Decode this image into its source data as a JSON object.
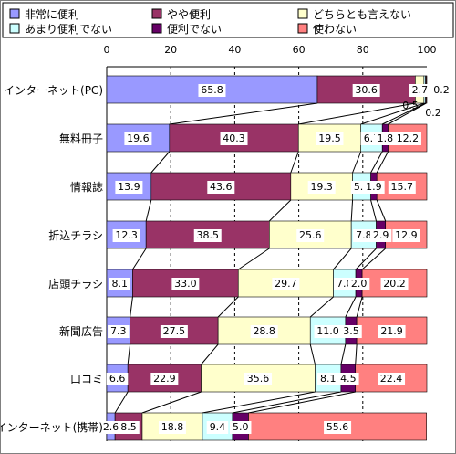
{
  "chart_data": {
    "type": "bar",
    "orientation": "horizontal",
    "stacked": true,
    "xlim": [
      0,
      100
    ],
    "xticks": [
      0,
      20,
      40,
      60,
      80,
      100
    ],
    "grid": "dashed vertical at 20, 40, 60, 80",
    "legend_position": "top",
    "series_lines": true,
    "categories": [
      "インターネット(PC)",
      "無料冊子",
      "情報誌",
      "折込チラシ",
      "店頭チラシ",
      "新聞広告",
      "口コミ",
      "インターネット(携帯)"
    ],
    "series": [
      {
        "name": "非常に便利",
        "color": "#9999ff",
        "values": [
          65.8,
          19.6,
          13.9,
          12.3,
          8.1,
          7.3,
          6.6,
          2.6
        ]
      },
      {
        "name": "やや便利",
        "color": "#993366",
        "values": [
          30.6,
          40.3,
          43.6,
          38.5,
          33.0,
          27.5,
          22.9,
          8.5
        ]
      },
      {
        "name": "どちらとも言えない",
        "color": "#ffffcc",
        "values": [
          2.7,
          19.5,
          19.3,
          25.6,
          29.7,
          28.8,
          35.6,
          18.8
        ]
      },
      {
        "name": "あまり便利でない",
        "color": "#ccffff",
        "values": [
          0.5,
          6.7,
          5.7,
          7.8,
          7.0,
          11.0,
          8.1,
          9.4
        ]
      },
      {
        "name": "便利でない",
        "color": "#660066",
        "values": [
          0.2,
          1.8,
          1.9,
          2.9,
          2.0,
          3.5,
          4.5,
          5.0
        ]
      },
      {
        "name": "使わない",
        "color": "#ff8080",
        "values": [
          0.2,
          12.2,
          15.7,
          12.9,
          20.2,
          21.9,
          22.4,
          55.6
        ]
      }
    ],
    "data_labels": [
      [
        "65.8",
        "30.6",
        "2.7",
        "0.5",
        "0.2",
        "0.2"
      ],
      [
        "19.6",
        "40.3",
        "19.5",
        "6.7",
        "1.8",
        "12.2"
      ],
      [
        "13.9",
        "43.6",
        "19.3",
        "5.7",
        "1.9",
        "15.7"
      ],
      [
        "12.3",
        "38.5",
        "25.6",
        "7.8",
        "2.9",
        "12.9"
      ],
      [
        "8.1",
        "33.0",
        "29.7",
        "7.0",
        "2.0",
        "20.2"
      ],
      [
        "7.3",
        "27.5",
        "28.8",
        "11.0",
        "3.5",
        "21.9"
      ],
      [
        "6.6",
        "22.9",
        "35.6",
        "8.1",
        "4.5",
        "22.4"
      ],
      [
        "2.6",
        "8.5",
        "18.8",
        "9.4",
        "5.0",
        "55.6"
      ]
    ]
  }
}
